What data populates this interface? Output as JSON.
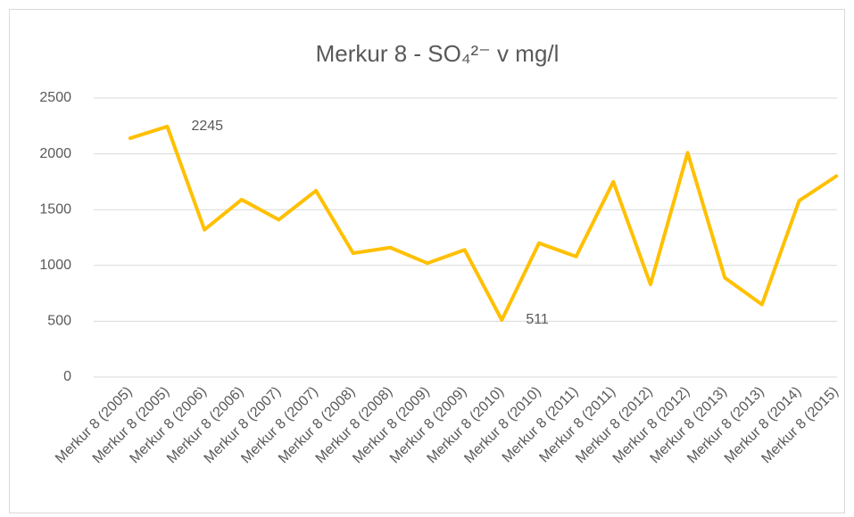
{
  "chart_data": {
    "type": "line",
    "title": "Merkur 8 - SO₄²⁻ v mg/l",
    "categories": [
      "Merkur 8 (2005)",
      "Merkur 8 (2005)",
      "Merkur 8 (2006)",
      "Merkur 8 (2006)",
      "Merkur 8 (2007)",
      "Merkur 8 (2007)",
      "Merkur 8 (2008)",
      "Merkur 8 (2008)",
      "Merkur 8 (2009)",
      "Merkur 8 (2009)",
      "Merkur 8 (2010)",
      "Merkur 8 (2010)",
      "Merkur 8 (2011)",
      "Merkur 8 (2011)",
      "Merkur 8 (2012)",
      "Merkur 8 (2012)",
      "Merkur 8 (2013)",
      "Merkur 8 (2013)",
      "Merkur 8 (2014)",
      "Merkur 8 (2015)"
    ],
    "values": [
      2140,
      2245,
      1320,
      1590,
      1410,
      1670,
      1110,
      1160,
      1020,
      1140,
      511,
      1200,
      1080,
      1750,
      830,
      2010,
      890,
      650,
      1580,
      1800
    ],
    "value_labels": [
      null,
      "2245",
      null,
      null,
      null,
      null,
      null,
      null,
      null,
      null,
      "511",
      null,
      null,
      null,
      null,
      null,
      null,
      null,
      null,
      null
    ],
    "color": "#ffc000",
    "ylim": [
      0,
      2500
    ],
    "yticks": [
      0,
      500,
      1000,
      1500,
      2000,
      2500
    ],
    "grid": true
  }
}
